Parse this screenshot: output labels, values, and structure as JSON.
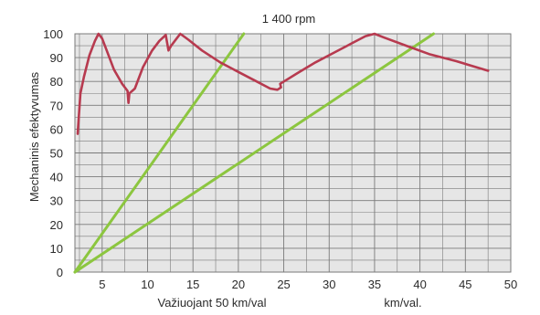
{
  "chart_data": {
    "type": "line",
    "title": "1 400 rpm",
    "ylabel": "Mechaninis efektyvumas",
    "xlabel_left": "Važiuojant 50 km/val",
    "xlabel_right": "km/val.",
    "xlim": [
      2,
      50
    ],
    "ylim": [
      0,
      100
    ],
    "x_ticks": [
      "5",
      "10",
      "15",
      "20",
      "25",
      "30",
      "35",
      "40",
      "45",
      "50"
    ],
    "x_tick_values": [
      5,
      10,
      15,
      20,
      25,
      30,
      35,
      40,
      45,
      50
    ],
    "y_ticks": [
      "0",
      "10",
      "20",
      "30",
      "40",
      "50",
      "60",
      "70",
      "80",
      "90",
      "100"
    ],
    "y_tick_values": [
      0,
      10,
      20,
      30,
      40,
      50,
      60,
      70,
      80,
      90,
      100
    ],
    "grid": true,
    "plot_background": "#e6e6e6",
    "grid_color": "#7a7a7a",
    "series": [
      {
        "color": "#b73a4f",
        "points": [
          [
            2.3,
            58
          ],
          [
            2.6,
            75
          ],
          [
            3.0,
            82
          ],
          [
            3.6,
            91
          ],
          [
            4.2,
            97
          ],
          [
            4.6,
            100
          ],
          [
            5.0,
            98
          ],
          [
            5.5,
            93
          ],
          [
            6.3,
            85
          ],
          [
            7.2,
            79
          ],
          [
            7.8,
            76
          ],
          [
            7.9,
            71
          ],
          [
            8.0,
            75
          ],
          [
            8.6,
            77
          ],
          [
            9.5,
            86
          ],
          [
            10.5,
            93
          ],
          [
            11.3,
            97
          ],
          [
            12.0,
            99.5
          ],
          [
            12.3,
            93
          ],
          [
            12.6,
            95
          ],
          [
            13.2,
            98
          ],
          [
            13.6,
            100
          ],
          [
            14.5,
            97.5
          ],
          [
            16.0,
            93
          ],
          [
            18.0,
            88
          ],
          [
            20.0,
            84
          ],
          [
            22.0,
            80
          ],
          [
            23.5,
            77
          ],
          [
            24.3,
            76.5
          ],
          [
            24.7,
            77.5
          ],
          [
            24.6,
            79
          ],
          [
            26.5,
            83.5
          ],
          [
            28.5,
            88
          ],
          [
            30.5,
            92
          ],
          [
            32.5,
            96
          ],
          [
            34.0,
            99
          ],
          [
            35.0,
            100
          ],
          [
            36.0,
            98.5
          ],
          [
            38.5,
            95
          ],
          [
            41.0,
            91.5
          ],
          [
            44.0,
            88.5
          ],
          [
            47.5,
            84.5
          ]
        ]
      },
      {
        "color": "#8cc63f",
        "points": [
          [
            2,
            0
          ],
          [
            20.6,
            100
          ]
        ]
      },
      {
        "color": "#8cc63f",
        "points": [
          [
            2,
            0
          ],
          [
            41.5,
            100
          ]
        ]
      }
    ]
  }
}
